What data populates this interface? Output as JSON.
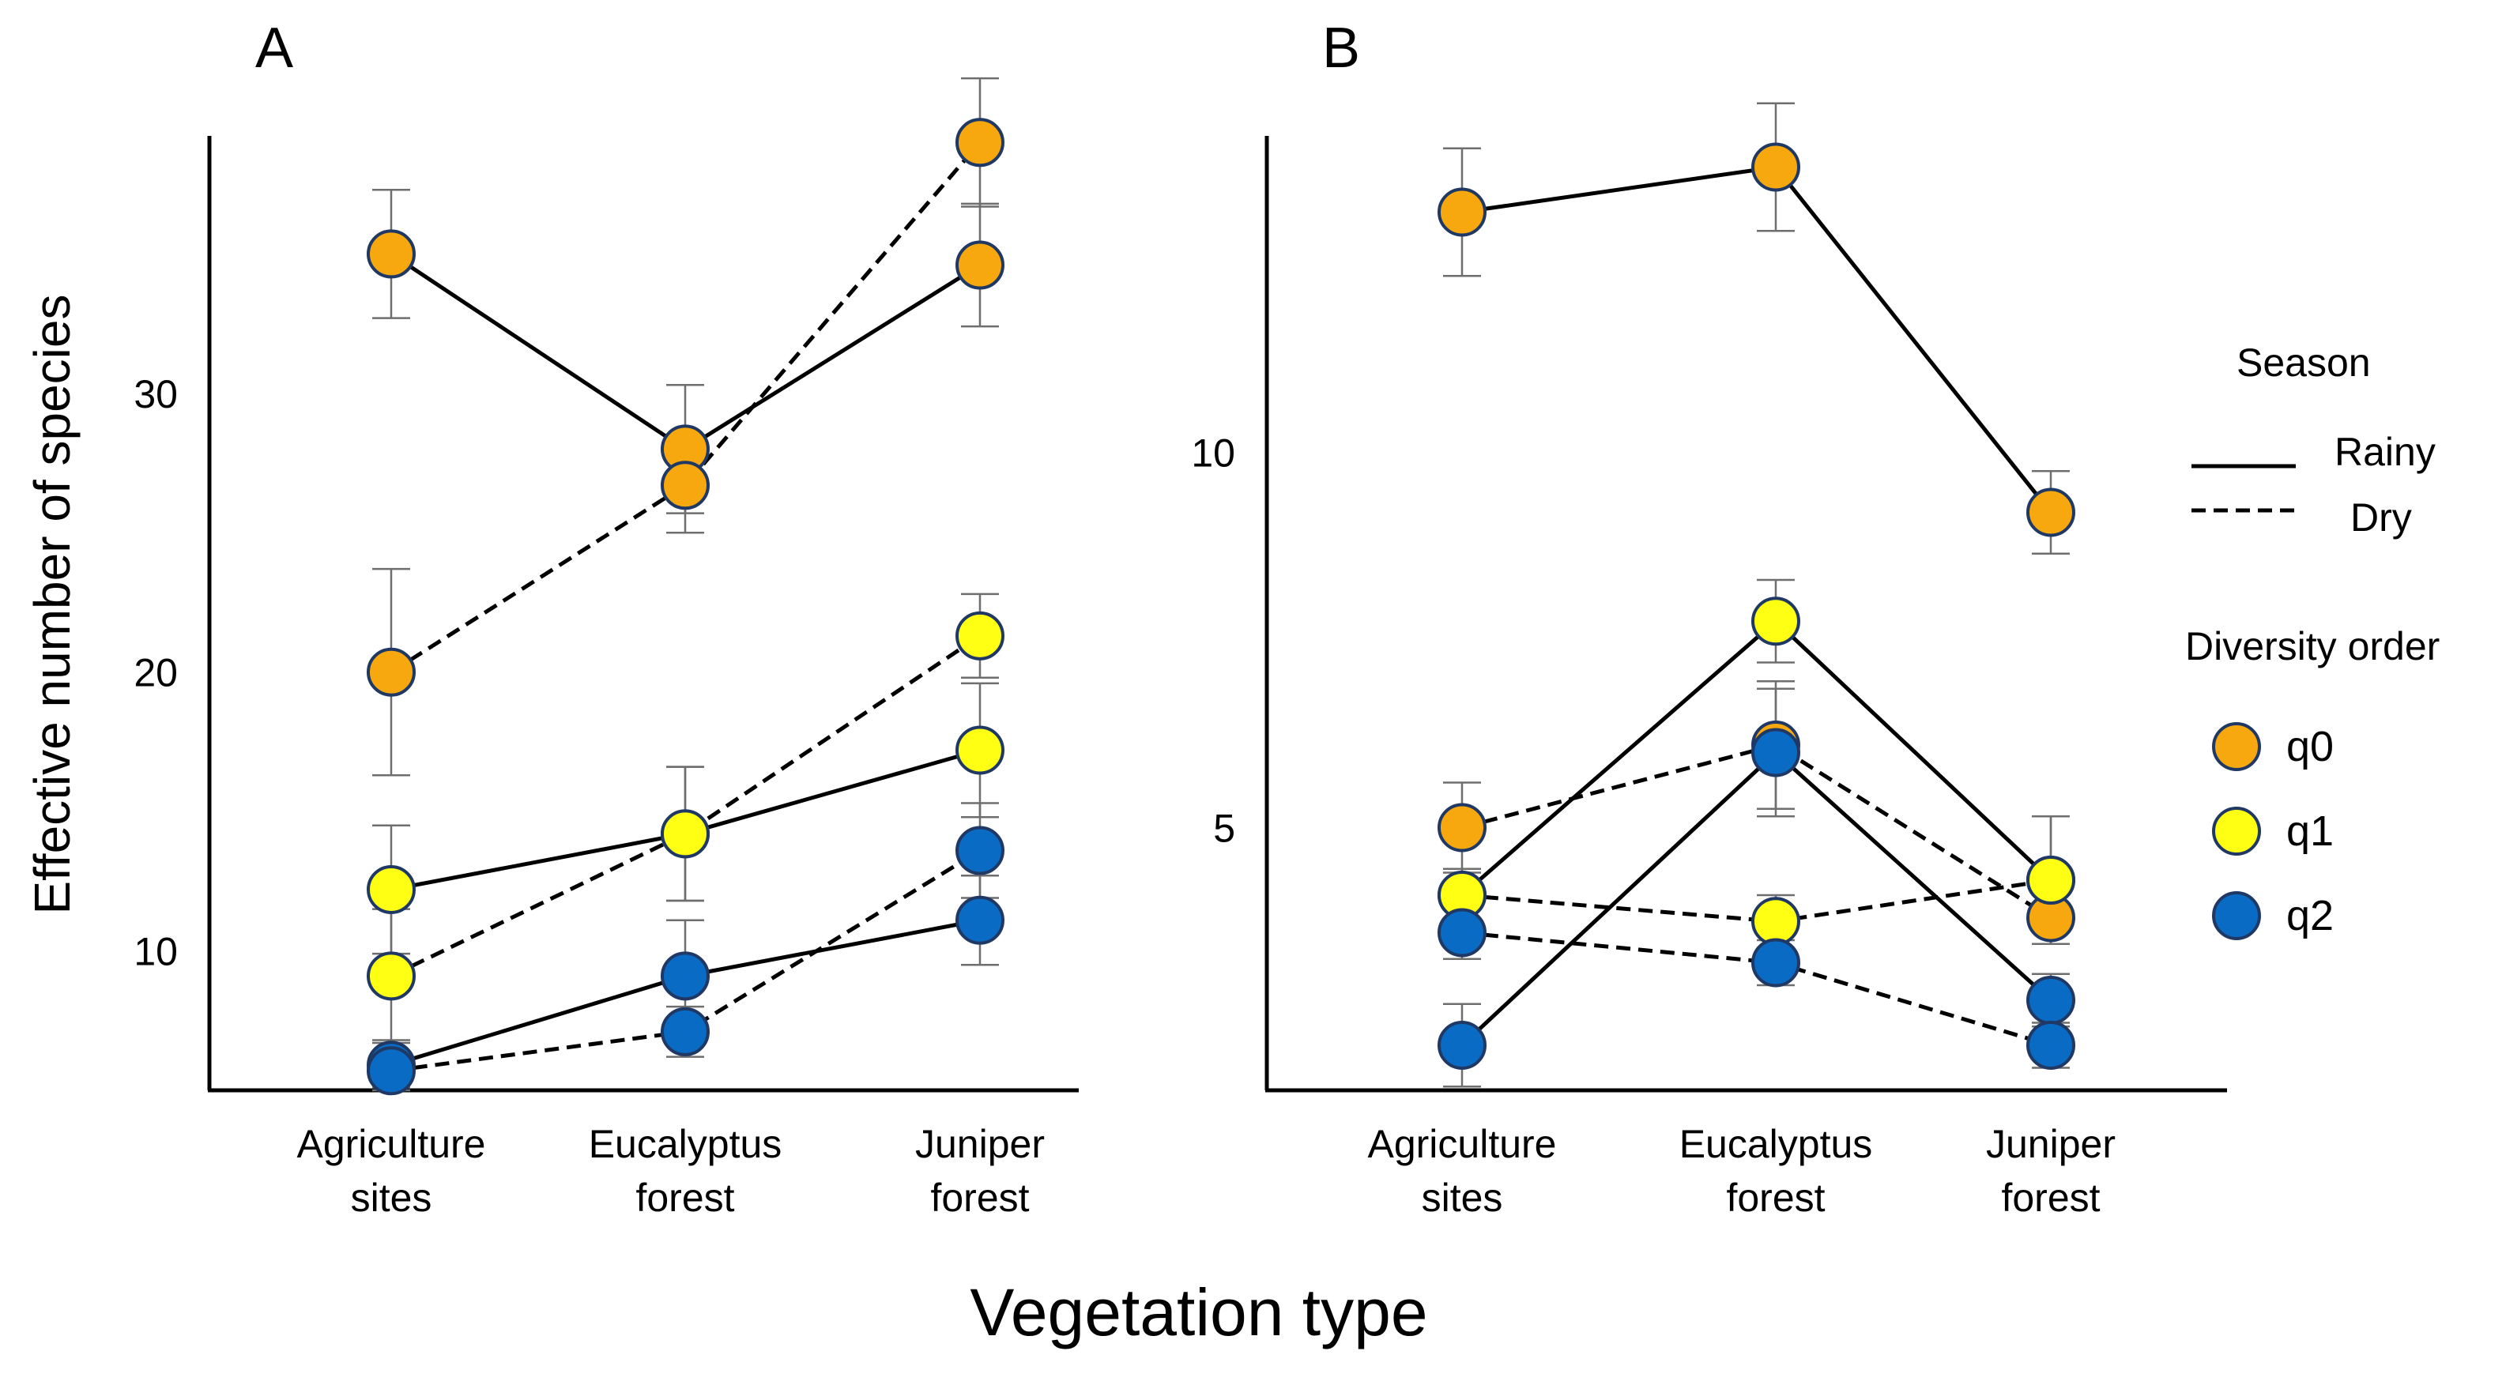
{
  "colors": {
    "q0": "#F7A80F",
    "q1": "#FFFF14",
    "q2": "#0A6BC4",
    "marker_edge": "#1F3864",
    "line": "#000000",
    "errorbar": "#6E6E6E"
  },
  "shared": {
    "ylabel": "Effective number of species",
    "xlabel": "Vegetation type",
    "categories": [
      [
        "Agriculture",
        "sites"
      ],
      [
        "Eucalyptus",
        "forest"
      ],
      [
        "Juniper",
        "forest"
      ]
    ]
  },
  "legend": {
    "season_title": "Season",
    "season_items": [
      {
        "label": "Rainy",
        "style": "solid"
      },
      {
        "label": "Dry",
        "style": "dashed"
      }
    ],
    "order_title": "Diversity order",
    "order_items": [
      {
        "label": "q0",
        "color_key": "q0"
      },
      {
        "label": "q1",
        "color_key": "q1"
      },
      {
        "label": "q2",
        "color_key": "q2"
      }
    ]
  },
  "chart_data": [
    {
      "panel": "A",
      "type": "line",
      "ylim": [
        5,
        40
      ],
      "yticks": [
        10,
        20,
        30
      ],
      "series": [
        {
          "name": "q0 Rainy",
          "order": "q0",
          "season": "Rainy",
          "values": [
            35.0,
            28.0,
            34.6
          ],
          "err": [
            2.3,
            2.3,
            2.2
          ]
        },
        {
          "name": "q0 Dry",
          "order": "q0",
          "season": "Dry",
          "values": [
            20.0,
            26.7,
            39.0
          ],
          "err": [
            3.7,
            1.7,
            2.3
          ]
        },
        {
          "name": "q1 Rainy",
          "order": "q1",
          "season": "Rainy",
          "values": [
            12.2,
            14.2,
            17.2
          ],
          "err": [
            2.3,
            2.4,
            2.4
          ]
        },
        {
          "name": "q1 Dry",
          "order": "q1",
          "season": "Dry",
          "values": [
            9.1,
            14.2,
            21.3
          ],
          "err": [
            2.4,
            2.4,
            1.5
          ]
        },
        {
          "name": "q2 Rainy",
          "order": "q2",
          "season": "Rainy",
          "values": [
            5.9,
            9.1,
            11.1
          ],
          "err": [
            0.9,
            2.0,
            1.6
          ]
        },
        {
          "name": "q2 Dry",
          "order": "q2",
          "season": "Dry",
          "values": [
            5.7,
            7.1,
            13.6
          ],
          "err": [
            0.6,
            0.9,
            1.7
          ]
        }
      ]
    },
    {
      "panel": "B",
      "type": "line",
      "ylim": [
        1.5,
        14.5
      ],
      "yticks": [
        5,
        10
      ],
      "series": [
        {
          "name": "q0 Rainy",
          "order": "q0",
          "season": "Rainy",
          "values": [
            13.2,
            13.8,
            9.2
          ],
          "err": [
            0.85,
            0.85,
            0.55
          ]
        },
        {
          "name": "q0 Dry",
          "order": "q0",
          "season": "Dry",
          "values": [
            5.0,
            6.1,
            3.8
          ],
          "err": [
            0.6,
            0.85,
            0.35
          ]
        },
        {
          "name": "q1 Rainy",
          "order": "q1",
          "season": "Rainy",
          "values": [
            4.1,
            7.75,
            4.3
          ],
          "err": [
            0.35,
            0.55,
            0.85
          ]
        },
        {
          "name": "q1 Dry",
          "order": "q1",
          "season": "Dry",
          "values": [
            4.1,
            3.75,
            4.3
          ],
          "err": [
            0.35,
            0.35,
            0.85
          ]
        },
        {
          "name": "q2 Rainy",
          "order": "q2",
          "season": "Rainy",
          "values": [
            2.1,
            6.0,
            2.7
          ],
          "err": [
            0.55,
            0.85,
            0.35
          ]
        },
        {
          "name": "q2 Dry",
          "order": "q2",
          "season": "Dry",
          "values": [
            3.6,
            3.2,
            2.1
          ],
          "err": [
            0.35,
            0.3,
            0.3
          ]
        }
      ]
    }
  ]
}
